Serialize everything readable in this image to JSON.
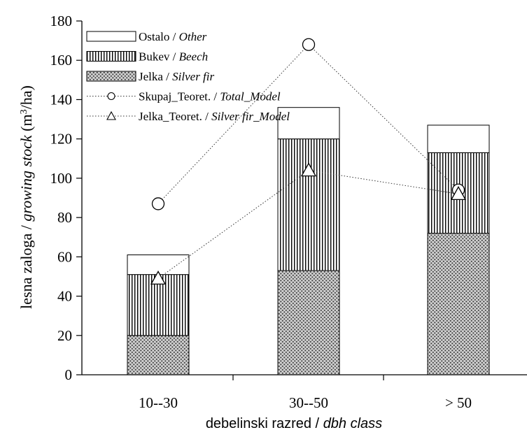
{
  "chart_data": {
    "type": "bar",
    "stacked": true,
    "categories": [
      "10--30",
      "30--50",
      "> 50"
    ],
    "ylim": [
      0,
      180
    ],
    "yticks": [
      0,
      20,
      40,
      60,
      80,
      100,
      120,
      140,
      160,
      180
    ],
    "ylabel": {
      "prefix": "lesna zaloga / ",
      "italic": "growing stock",
      "unit_open": " (m",
      "unit_sup": "3",
      "unit_close": "/ha)"
    },
    "xlabel": {
      "prefix": "debelinski razred / ",
      "italic": "dbh class"
    },
    "series": [
      {
        "name": "Jelka",
        "name_en": "Silver fir",
        "pattern": "dots",
        "values": [
          20,
          53,
          72
        ]
      },
      {
        "name": "Bukev",
        "name_en": "Beech",
        "pattern": "vlines",
        "values": [
          31,
          67,
          41
        ]
      },
      {
        "name": "Ostalo",
        "name_en": "Other",
        "pattern": "white",
        "values": [
          10,
          16,
          14
        ]
      }
    ],
    "lines": [
      {
        "name": "Skupaj_Teoret.",
        "name_en": "Total_Model",
        "marker": "circle",
        "values": [
          87,
          168,
          94
        ]
      },
      {
        "name": "Jelka_Teoret.",
        "name_en": "Silver fir_Model",
        "marker": "triangle",
        "values": [
          49,
          104,
          92
        ]
      }
    ],
    "legend_order": [
      "Ostalo",
      "Bukev",
      "Jelka",
      "Skupaj_Teoret.",
      "Jelka_Teoret."
    ],
    "legend_position": "top-left",
    "grid": false
  }
}
